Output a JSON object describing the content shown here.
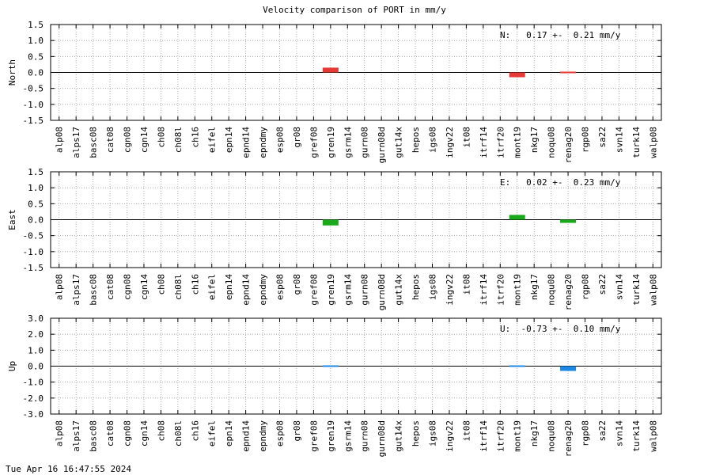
{
  "chart_data": {
    "type": "bar",
    "title": "Velocity comparison of PORT in mm/y",
    "categories": [
      "alp08",
      "alps17",
      "basc08",
      "cat08",
      "cgn08",
      "cgn14",
      "ch08",
      "ch08l",
      "ch16",
      "eifel",
      "epn14",
      "epnd14",
      "epndmy",
      "esp08",
      "gr08",
      "gref08",
      "gren19",
      "gsrm14",
      "gurn08",
      "gurn08d",
      "gut14x",
      "hepos",
      "igs08",
      "ingv22",
      "it08",
      "itrf14",
      "itrf20",
      "mont19",
      "nkg17",
      "noqu08",
      "renag20",
      "rgp08",
      "sa22",
      "svn14",
      "turk14",
      "walp08"
    ],
    "grid": true,
    "panels": [
      {
        "ylabel": "North",
        "ylim": [
          -1.5,
          1.5
        ],
        "yticks": [
          "1.5",
          "1.0",
          "0.5",
          "0.0",
          "-0.5",
          "-1.0",
          "-1.5"
        ],
        "summary": "N:   0.17 +-  0.21 mm/y",
        "color": "#e53935",
        "bars": [
          {
            "category": "gren19",
            "value": 0.15
          },
          {
            "category": "mont19",
            "value": -0.15
          },
          {
            "category": "renag20",
            "value": 0.02
          }
        ]
      },
      {
        "ylabel": "East",
        "ylim": [
          -1.5,
          1.5
        ],
        "yticks": [
          "1.5",
          "1.0",
          "0.5",
          "0.0",
          "-0.5",
          "-1.0",
          "-1.5"
        ],
        "summary": "E:   0.02 +-  0.23 mm/y",
        "color": "#1aa91a",
        "bars": [
          {
            "category": "gren19",
            "value": -0.18
          },
          {
            "category": "mont19",
            "value": 0.15
          },
          {
            "category": "renag20",
            "value": -0.1
          }
        ]
      },
      {
        "ylabel": "Up",
        "ylim": [
          -3.0,
          3.0
        ],
        "yticks": [
          "3.0",
          "2.0",
          "1.0",
          "0.0",
          "-1.0",
          "-2.0",
          "-3.0"
        ],
        "summary": "U:  -0.73 +-  0.10 mm/y",
        "color": "#1e88e5",
        "bars": [
          {
            "category": "gren19",
            "value": 0.04
          },
          {
            "category": "mont19",
            "value": -0.06
          },
          {
            "category": "renag20",
            "value": -0.3
          }
        ]
      }
    ]
  },
  "footer": {
    "timestamp": "Tue Apr 16 16:47:55 2024"
  }
}
